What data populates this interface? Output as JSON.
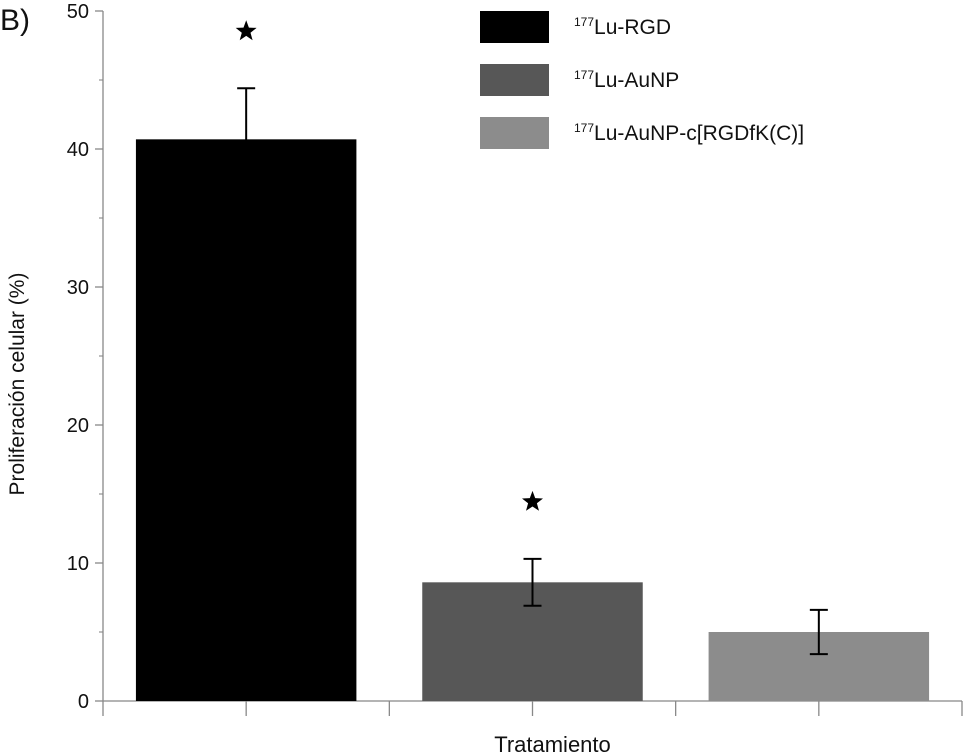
{
  "panel_label": "B)",
  "chart_data": {
    "type": "bar",
    "title": "",
    "xlabel": "Tratamiento",
    "ylabel": "Proliferación celular (%)",
    "ylim": [
      0,
      50
    ],
    "yticks": [
      0,
      10,
      20,
      30,
      40,
      50
    ],
    "grid": false,
    "legend_position": "top-right",
    "bars": [
      {
        "sup": "177",
        "label": "Lu-RGD",
        "value": 40.7,
        "error": 3.7,
        "significant": true,
        "color": "#000000"
      },
      {
        "sup": "177",
        "label": "Lu-AuNP",
        "value": 8.6,
        "error": 1.7,
        "significant": true,
        "color": "#575757"
      },
      {
        "sup": "177",
        "label": "Lu-AuNP-c[RGDfK(C)]",
        "value": 5.0,
        "error": 1.6,
        "significant": false,
        "color": "#8c8c8c"
      }
    ]
  }
}
